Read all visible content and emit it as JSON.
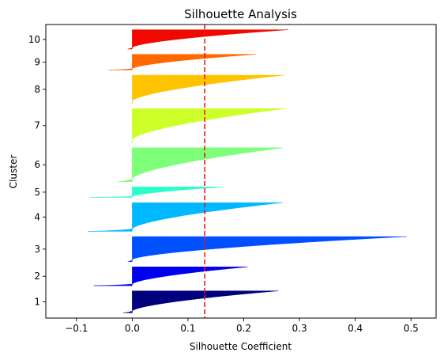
{
  "chart_data": {
    "type": "silhouette",
    "title": "Silhouette Analysis",
    "xlabel": "Silhouette Coefficient",
    "ylabel": "Cluster",
    "xlim": [
      -0.155,
      0.545
    ],
    "x_ticks": [
      -0.1,
      0.0,
      0.1,
      0.2,
      0.3,
      0.4,
      0.5
    ],
    "x_tick_labels": [
      "−0.1",
      "0.0",
      "0.1",
      "0.2",
      "0.3",
      "0.4",
      "0.5"
    ],
    "average_silhouette": 0.13,
    "average_line_color": "#e8190f",
    "grid": false,
    "clusters": [
      {
        "label": "1",
        "color": "#00007f",
        "min": -0.016,
        "max": 0.262,
        "start_row": 10,
        "size": 42
      },
      {
        "label": "2",
        "color": "#0000f1",
        "min": -0.069,
        "max": 0.207,
        "start_row": 62,
        "size": 36
      },
      {
        "label": "3",
        "color": "#0050ff",
        "min": -0.008,
        "max": 0.492,
        "start_row": 108,
        "size": 48
      },
      {
        "label": "4",
        "color": "#00b8ff",
        "min": -0.079,
        "max": 0.27,
        "start_row": 166,
        "size": 55
      },
      {
        "label": "5",
        "color": "#29ffce",
        "min": -0.076,
        "max": 0.164,
        "start_row": 231,
        "size": 20
      },
      {
        "label": "6",
        "color": "#7dff7a",
        "min": -0.026,
        "max": 0.27,
        "start_row": 261,
        "size": 65
      },
      {
        "label": "7",
        "color": "#ceff29",
        "min": -0.003,
        "max": 0.274,
        "start_row": 336,
        "size": 65
      },
      {
        "label": "8",
        "color": "#ffc400",
        "min": -0.001,
        "max": 0.272,
        "start_row": 411,
        "size": 54
      },
      {
        "label": "9",
        "color": "#ff6800",
        "min": -0.042,
        "max": 0.222,
        "start_row": 475,
        "size": 30
      },
      {
        "label": "10",
        "color": "#f10800",
        "min": -0.008,
        "max": 0.28,
        "start_row": 515,
        "size": 37
      }
    ],
    "ylim": [
      0,
      562
    ]
  }
}
